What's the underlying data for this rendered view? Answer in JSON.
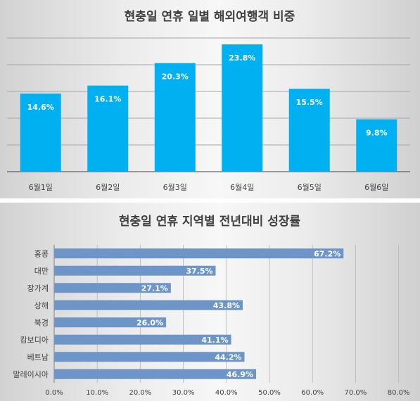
{
  "chart_data": [
    {
      "type": "bar",
      "title": "현충일 연휴 일별 해외여행객 비중",
      "categories": [
        "6월1일",
        "6월2일",
        "6월3일",
        "6월4일",
        "6월5일",
        "6월6일"
      ],
      "values": [
        14.6,
        16.1,
        20.3,
        23.8,
        15.5,
        9.8
      ],
      "value_labels": [
        "14.6%",
        "16.1%",
        "20.3%",
        "23.8%",
        "15.5%",
        "9.8%"
      ],
      "ylim": [
        0,
        25
      ],
      "grid": true,
      "bar_color": "#00b0f0"
    },
    {
      "type": "bar",
      "orientation": "horizontal",
      "title": "현충일 연휴 지역별 전년대비 성장률",
      "categories": [
        "홍콩",
        "대만",
        "장가계",
        "상해",
        "북경",
        "캄보디아",
        "베트남",
        "말레이시아"
      ],
      "values": [
        67.2,
        37.5,
        27.1,
        43.8,
        26.0,
        41.1,
        44.2,
        46.9
      ],
      "value_labels": [
        "67.2%",
        "37.5%",
        "27.1%",
        "43.8%",
        "26.0%",
        "41.1%",
        "44.2%",
        "46.9%"
      ],
      "xlim": [
        0,
        80
      ],
      "xticks": [
        "0.0%",
        "10.0%",
        "20.0%",
        "30.0%",
        "40.0%",
        "50.0%",
        "60.0%",
        "70.0%",
        "80.0%"
      ],
      "grid": true,
      "bar_color": "#6d95c8"
    }
  ]
}
